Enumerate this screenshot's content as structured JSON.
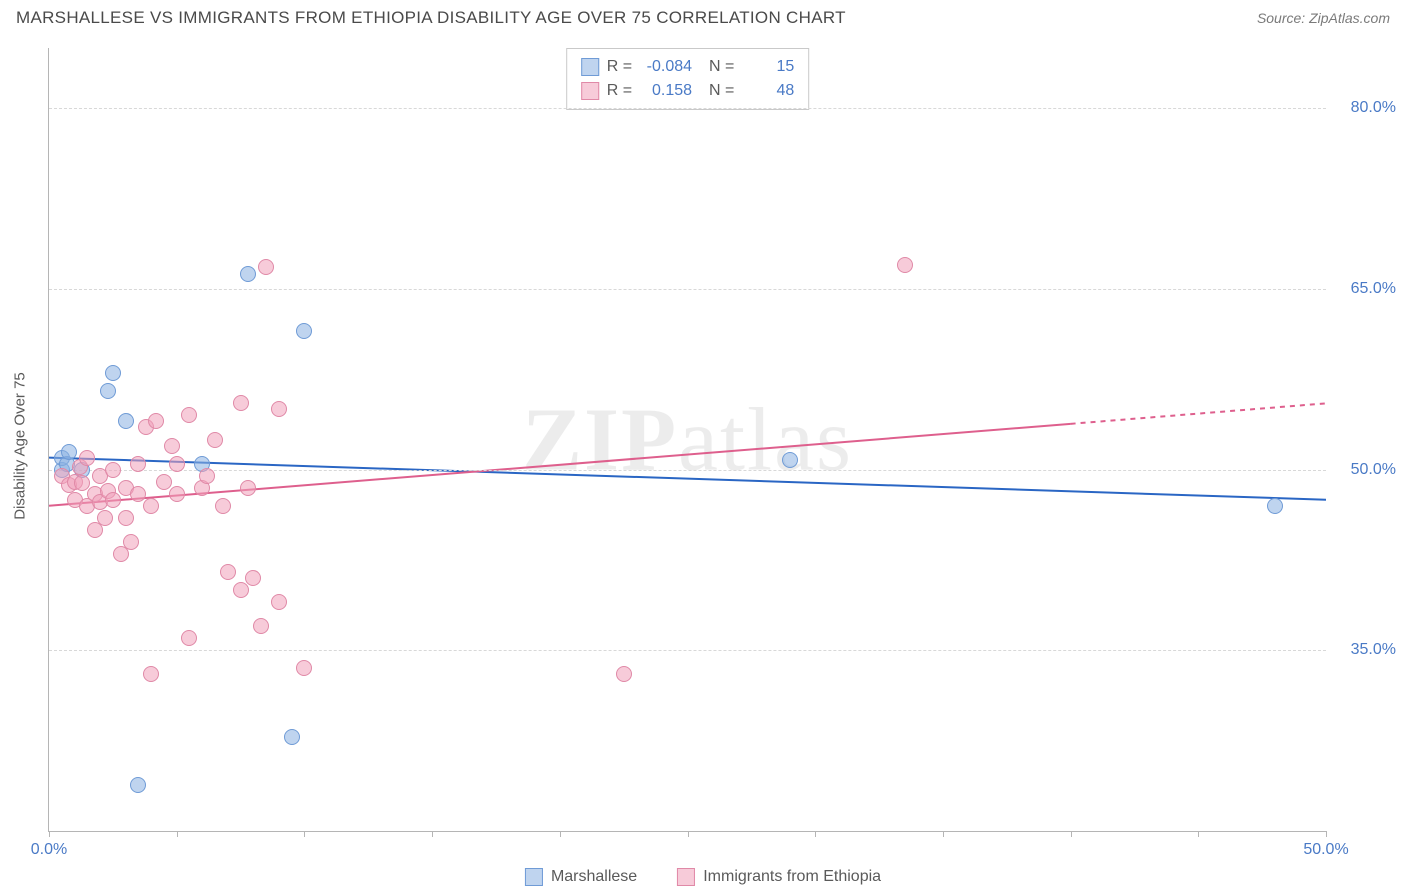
{
  "header": {
    "title": "MARSHALLESE VS IMMIGRANTS FROM ETHIOPIA DISABILITY AGE OVER 75 CORRELATION CHART",
    "source": "Source: ZipAtlas.com"
  },
  "watermark": {
    "bold": "ZIP",
    "rest": "atlas"
  },
  "chart": {
    "type": "scatter",
    "y_axis_title": "Disability Age Over 75",
    "xlim": [
      0,
      50
    ],
    "ylim": [
      20,
      85
    ],
    "x_ticks": [
      0,
      5,
      10,
      15,
      20,
      25,
      30,
      35,
      40,
      45,
      50
    ],
    "x_tick_labels": {
      "0": "0.0%",
      "50": "50.0%"
    },
    "y_gridlines": [
      35,
      50,
      65,
      80
    ],
    "y_tick_labels": {
      "35": "35.0%",
      "50": "50.0%",
      "65": "65.0%",
      "80": "80.0%"
    },
    "background_color": "#ffffff",
    "grid_color": "#d8d8d8",
    "axis_color": "#b5b5b5",
    "tick_label_color": "#4a7ac6",
    "marker_radius": 8,
    "marker_stroke_width": 1.2,
    "series": [
      {
        "key": "series_a",
        "name": "Marshallese",
        "fill": "rgba(139,177,226,0.55)",
        "stroke": "#6f9bd6",
        "trend_color": "#2a66c4",
        "trend_width": 2,
        "R": "-0.084",
        "N": "15",
        "trend": {
          "y_at_x0": 51.0,
          "y_at_x50": 47.5,
          "dash_after_x": 50
        },
        "points": [
          {
            "x": 0.5,
            "y": 50.0
          },
          {
            "x": 0.5,
            "y": 51.0
          },
          {
            "x": 0.7,
            "y": 50.5
          },
          {
            "x": 0.8,
            "y": 51.5
          },
          {
            "x": 1.3,
            "y": 50.0
          },
          {
            "x": 2.3,
            "y": 56.5
          },
          {
            "x": 2.5,
            "y": 58.0
          },
          {
            "x": 3.0,
            "y": 54.0
          },
          {
            "x": 6.0,
            "y": 50.5
          },
          {
            "x": 7.8,
            "y": 66.2
          },
          {
            "x": 10.0,
            "y": 61.5
          },
          {
            "x": 3.5,
            "y": 23.8
          },
          {
            "x": 9.5,
            "y": 27.8
          },
          {
            "x": 29.0,
            "y": 50.8
          },
          {
            "x": 48.0,
            "y": 47.0
          }
        ]
      },
      {
        "key": "series_b",
        "name": "Immigrants from Ethiopia",
        "fill": "rgba(240,160,185,0.55)",
        "stroke": "#e089a7",
        "trend_color": "#de5f8d",
        "trend_width": 2,
        "R": "0.158",
        "N": "48",
        "trend": {
          "y_at_x0": 47.0,
          "y_at_x50": 55.5,
          "dash_after_x": 40
        },
        "points": [
          {
            "x": 0.5,
            "y": 49.5
          },
          {
            "x": 0.8,
            "y": 48.7
          },
          {
            "x": 1.0,
            "y": 49.0
          },
          {
            "x": 1.0,
            "y": 47.5
          },
          {
            "x": 1.2,
            "y": 50.2
          },
          {
            "x": 1.3,
            "y": 48.9
          },
          {
            "x": 1.5,
            "y": 47.0
          },
          {
            "x": 1.5,
            "y": 51.0
          },
          {
            "x": 1.8,
            "y": 48.0
          },
          {
            "x": 1.8,
            "y": 45.0
          },
          {
            "x": 2.0,
            "y": 49.5
          },
          {
            "x": 2.0,
            "y": 47.3
          },
          {
            "x": 2.2,
            "y": 46.0
          },
          {
            "x": 2.3,
            "y": 48.2
          },
          {
            "x": 2.5,
            "y": 47.5
          },
          {
            "x": 2.5,
            "y": 50.0
          },
          {
            "x": 2.8,
            "y": 43.0
          },
          {
            "x": 3.0,
            "y": 48.5
          },
          {
            "x": 3.0,
            "y": 46.0
          },
          {
            "x": 3.2,
            "y": 44.0
          },
          {
            "x": 3.5,
            "y": 48.0
          },
          {
            "x": 3.5,
            "y": 50.5
          },
          {
            "x": 3.8,
            "y": 53.5
          },
          {
            "x": 4.0,
            "y": 47.0
          },
          {
            "x": 4.0,
            "y": 33.0
          },
          {
            "x": 4.2,
            "y": 54.0
          },
          {
            "x": 4.5,
            "y": 49.0
          },
          {
            "x": 4.8,
            "y": 52.0
          },
          {
            "x": 5.0,
            "y": 48.0
          },
          {
            "x": 5.0,
            "y": 50.5
          },
          {
            "x": 5.5,
            "y": 54.5
          },
          {
            "x": 5.5,
            "y": 36.0
          },
          {
            "x": 6.0,
            "y": 48.5
          },
          {
            "x": 6.2,
            "y": 49.5
          },
          {
            "x": 6.5,
            "y": 52.5
          },
          {
            "x": 6.8,
            "y": 47.0
          },
          {
            "x": 7.0,
            "y": 41.5
          },
          {
            "x": 7.5,
            "y": 55.5
          },
          {
            "x": 7.5,
            "y": 40.0
          },
          {
            "x": 7.8,
            "y": 48.5
          },
          {
            "x": 8.0,
            "y": 41.0
          },
          {
            "x": 8.3,
            "y": 37.0
          },
          {
            "x": 8.5,
            "y": 66.8
          },
          {
            "x": 9.0,
            "y": 55.0
          },
          {
            "x": 9.0,
            "y": 39.0
          },
          {
            "x": 10.0,
            "y": 33.5
          },
          {
            "x": 22.5,
            "y": 33.0
          },
          {
            "x": 33.5,
            "y": 67.0
          }
        ]
      }
    ],
    "legend": {
      "position": "bottom-center"
    }
  }
}
